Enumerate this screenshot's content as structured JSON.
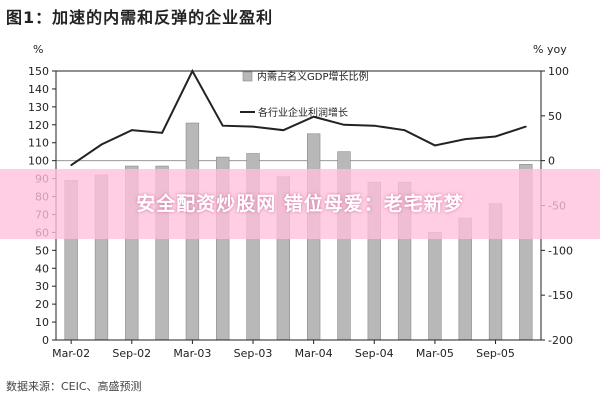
{
  "page": {
    "title": "图1：加速的内需和反弹的企业盈利",
    "source": "数据来源：CEIC、高盛预测",
    "banner": "安全配资炒股网 错位母爱：老宅新梦"
  },
  "chart_data": {
    "type": "bar",
    "left_axis": {
      "unit": "%",
      "min": 0,
      "max": 150,
      "ticks": [
        0,
        10,
        20,
        30,
        40,
        50,
        60,
        70,
        80,
        90,
        100,
        110,
        120,
        130,
        140,
        150
      ]
    },
    "right_axis": {
      "unit": "% yoy",
      "min": -200,
      "max": 100,
      "ticks": [
        -200,
        -150,
        -100,
        -50,
        0,
        50,
        100
      ]
    },
    "x_ticks": [
      "Mar-02",
      "Sep-02",
      "Mar-03",
      "Sep-03",
      "Mar-04",
      "Sep-04",
      "Mar-05",
      "Sep-05"
    ],
    "series": [
      {
        "name": "内需占名义GDP增长比例",
        "kind": "bar",
        "axis": "left",
        "color": "#b8b8b8",
        "values": [
          89,
          92,
          97,
          97,
          121,
          102,
          104,
          91,
          115,
          105,
          88,
          88,
          60,
          68,
          76,
          98
        ]
      },
      {
        "name": "各行业企业利润增长",
        "kind": "line",
        "axis": "right",
        "color": "#222222",
        "values": [
          -5,
          18,
          34,
          31,
          100,
          39,
          38,
          34,
          49,
          40,
          39,
          34,
          17,
          24,
          27,
          38
        ]
      }
    ],
    "grid": false,
    "legend_position": "top-center"
  }
}
